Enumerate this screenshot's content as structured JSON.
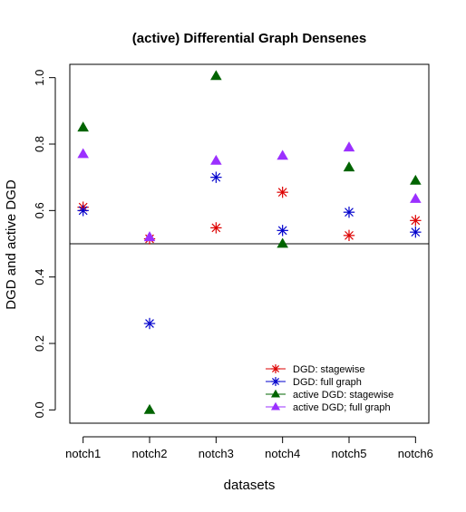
{
  "chart_data": {
    "type": "scatter",
    "title": "(active) Differential Graph Densenes",
    "xlabel": "datasets",
    "ylabel": "DGD and active DGD",
    "categories": [
      "notch1",
      "notch2",
      "notch3",
      "notch4",
      "notch5",
      "notch6"
    ],
    "ylim": [
      -0.04,
      1.04
    ],
    "yticks": [
      "0.0",
      "0.2",
      "0.4",
      "0.6",
      "0.8",
      "1.0"
    ],
    "reference_line": 0.5,
    "grid": false,
    "legend_position": "bottom-right",
    "series": [
      {
        "name": "DGD: stagewise",
        "marker": "asterisk",
        "color": "#dd0000",
        "values": [
          0.61,
          0.515,
          0.548,
          0.655,
          0.525,
          0.57
        ]
      },
      {
        "name": "DGD: full graph",
        "marker": "asterisk",
        "color": "#0000cc",
        "values": [
          0.6,
          0.26,
          0.7,
          0.54,
          0.595,
          0.535
        ]
      },
      {
        "name": "active DGD: stagewise",
        "marker": "triangle",
        "color": "#006400",
        "values": [
          0.85,
          0.0,
          1.005,
          0.5,
          0.73,
          0.69
        ]
      },
      {
        "name": "active DGD; full graph",
        "marker": "triangle",
        "color": "#9b30ff",
        "values": [
          0.77,
          0.52,
          0.75,
          0.765,
          0.79,
          0.635
        ]
      }
    ]
  }
}
